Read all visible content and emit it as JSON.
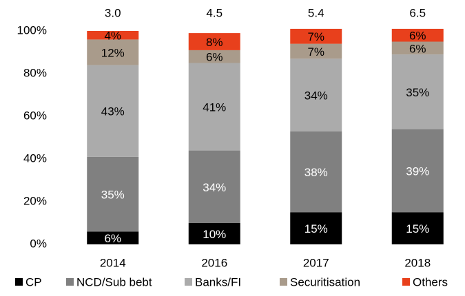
{
  "chart_data": {
    "type": "bar",
    "stacked": true,
    "categories": [
      "2014",
      "2016",
      "2017",
      "2018"
    ],
    "series": [
      {
        "name": "CP",
        "color": "#000000",
        "label_color": "#ffffff",
        "values": [
          6,
          10,
          15,
          15
        ],
        "value_labels": [
          "6%",
          "10%",
          "15%",
          "15%"
        ]
      },
      {
        "name": "NCD/Sub bebt",
        "color": "#808080",
        "label_color": "#ffffff",
        "values": [
          35,
          34,
          38,
          39
        ],
        "value_labels": [
          "35%",
          "34%",
          "38%",
          "39%"
        ]
      },
      {
        "name": "Banks/FI",
        "color": "#ababab",
        "label_color": "#000000",
        "values": [
          43,
          41,
          34,
          35
        ],
        "value_labels": [
          "43%",
          "41%",
          "34%",
          "35%"
        ]
      },
      {
        "name": "Securitisation",
        "color": "#a99b8b",
        "label_color": "#000000",
        "values": [
          12,
          6,
          7,
          6
        ],
        "value_labels": [
          "12%",
          "6%",
          "7%",
          "6%"
        ]
      },
      {
        "name": "Others",
        "color": "#e8401c",
        "label_color": "#000000",
        "values": [
          4,
          8,
          7,
          6
        ],
        "value_labels": [
          "4%",
          "8%",
          "7%",
          "6%"
        ]
      }
    ],
    "totals": {
      "values": [
        3,
        4.5,
        5.4,
        6.5
      ],
      "value_labels": [
        "3.0",
        "4.5",
        "5.4",
        "6.5"
      ]
    },
    "ylim": [
      0,
      100
    ],
    "yticks": [
      {
        "value": 0,
        "label": "0%"
      },
      {
        "value": 20,
        "label": "20%"
      },
      {
        "value": 40,
        "label": "40%"
      },
      {
        "value": 60,
        "label": "60%"
      },
      {
        "value": 80,
        "label": "80%"
      },
      {
        "value": 100,
        "label": "100%"
      }
    ],
    "grid": false,
    "legend": "bottom"
  }
}
